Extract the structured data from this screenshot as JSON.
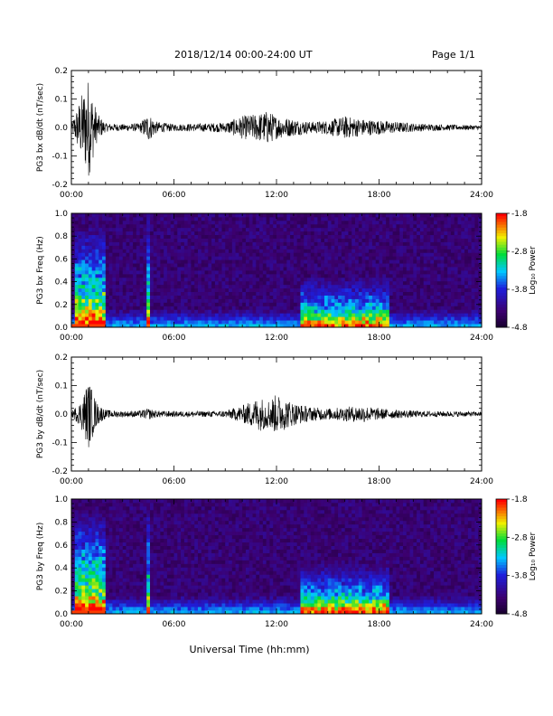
{
  "header": {
    "title": "2018/12/14  00:00-24:00 UT",
    "page": "Page 1/1"
  },
  "colors": {
    "waveform": "#000000",
    "spectrogram_low": "#1a0033",
    "spectrogram_mid": "#00c8ff",
    "spectrogram_high": "#ff0000"
  },
  "chart_data": [
    {
      "type": "line",
      "ylabel": "PG3 bx dB/dt (nT/sec)",
      "xlim": [
        0,
        24
      ],
      "ylim": [
        -0.2,
        0.2
      ],
      "x_ticks": [
        "00:00",
        "06:00",
        "12:00",
        "18:00",
        "24:00"
      ],
      "y_ticks": [
        "-0.2",
        "-0.1",
        "0.0",
        "0.1",
        "0.2"
      ],
      "envelope": {
        "x": [
          0,
          0.5,
          1,
          1.5,
          2,
          3,
          4,
          4.5,
          5,
          6,
          8,
          9,
          10,
          11,
          11.5,
          12,
          13,
          14,
          15,
          16,
          17,
          18,
          19,
          20,
          21,
          22,
          24
        ],
        "amplitude": [
          0.01,
          0.1,
          0.18,
          0.05,
          0.015,
          0.012,
          0.015,
          0.05,
          0.02,
          0.012,
          0.015,
          0.018,
          0.04,
          0.05,
          0.06,
          0.04,
          0.03,
          0.02,
          0.025,
          0.04,
          0.03,
          0.025,
          0.02,
          0.015,
          0.012,
          0.01,
          0.008
        ]
      }
    },
    {
      "type": "heatmap",
      "ylabel": "PG3 bx Freq (Hz)",
      "colorbar_label": "Log₁₀ Power",
      "colorbar_ticks": [
        "-1.8",
        "-2.8",
        "-3.8",
        "-4.8"
      ],
      "xlim": [
        0,
        24
      ],
      "ylim": [
        0,
        1
      ],
      "x_ticks": [
        "00:00",
        "06:00",
        "12:00",
        "18:00",
        "24:00"
      ],
      "y_ticks": [
        "0.0",
        "0.2",
        "0.4",
        "0.6",
        "0.8",
        "1.0"
      ],
      "features": [
        {
          "x": [
            0.2,
            2.0
          ],
          "fmax": 0.9,
          "level": 0.7
        },
        {
          "x": [
            4.4,
            4.6
          ],
          "fmax": 1.0,
          "level": 0.6
        },
        {
          "x": [
            13.5,
            18.5
          ],
          "fmax": 0.45,
          "level": 0.55
        }
      ]
    },
    {
      "type": "line",
      "ylabel": "PG3 by dB/dt (nT/sec)",
      "xlim": [
        0,
        24
      ],
      "ylim": [
        -0.2,
        0.2
      ],
      "x_ticks": [
        "00:00",
        "06:00",
        "12:00",
        "18:00",
        "24:00"
      ],
      "y_ticks": [
        "-0.2",
        "-0.1",
        "0.0",
        "0.1",
        "0.2"
      ],
      "envelope": {
        "x": [
          0,
          0.5,
          1,
          1.5,
          2,
          3,
          4,
          4.5,
          5,
          6,
          8,
          9,
          10,
          11,
          11.5,
          12,
          13,
          14,
          15,
          16,
          17,
          18,
          19,
          20,
          21,
          22,
          24
        ],
        "amplitude": [
          0.01,
          0.04,
          0.12,
          0.04,
          0.015,
          0.01,
          0.012,
          0.02,
          0.012,
          0.01,
          0.01,
          0.012,
          0.03,
          0.06,
          0.05,
          0.07,
          0.04,
          0.025,
          0.02,
          0.025,
          0.03,
          0.02,
          0.015,
          0.012,
          0.01,
          0.01,
          0.008
        ]
      }
    },
    {
      "type": "heatmap",
      "ylabel": "PG3 by Freq (Hz)",
      "colorbar_label": "Log₁₀ Power",
      "colorbar_ticks": [
        "-1.8",
        "-2.8",
        "-3.8",
        "-4.8"
      ],
      "xlim": [
        0,
        24
      ],
      "ylim": [
        0,
        1
      ],
      "x_ticks": [
        "00:00",
        "06:00",
        "12:00",
        "18:00",
        "24:00"
      ],
      "y_ticks": [
        "0.0",
        "0.2",
        "0.4",
        "0.6",
        "0.8",
        "1.0"
      ],
      "xlabel": "Universal Time (hh:mm)",
      "features": [
        {
          "x": [
            0.2,
            2.0
          ],
          "fmax": 0.9,
          "level": 0.7
        },
        {
          "x": [
            4.4,
            4.6
          ],
          "fmax": 1.0,
          "level": 0.6
        },
        {
          "x": [
            13.5,
            18.5
          ],
          "fmax": 0.45,
          "level": 0.55
        }
      ]
    }
  ]
}
